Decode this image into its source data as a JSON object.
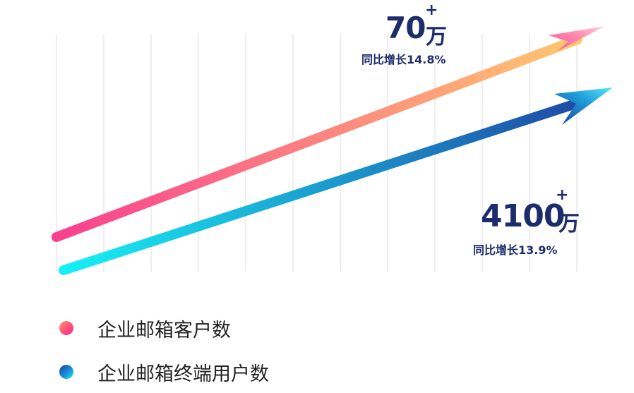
{
  "chart_data": {
    "type": "line",
    "series": [
      {
        "name": "企业邮箱客户数",
        "value_text": "70",
        "plus": "+",
        "unit": "万",
        "growth_text": "同比增长14.8%",
        "values": [
          0,
          70
        ],
        "colors": [
          "#fa3f8f",
          "#ffc870"
        ]
      },
      {
        "name": "企业邮箱终端用户数",
        "value_text": "4100",
        "plus": "+",
        "unit": "万",
        "growth_text": "同比增长13.9%",
        "values": [
          0,
          4100
        ],
        "colors": [
          "#17f0f5",
          "#1e48a6"
        ]
      }
    ],
    "grid": true,
    "legend_position": "bottom-left"
  }
}
